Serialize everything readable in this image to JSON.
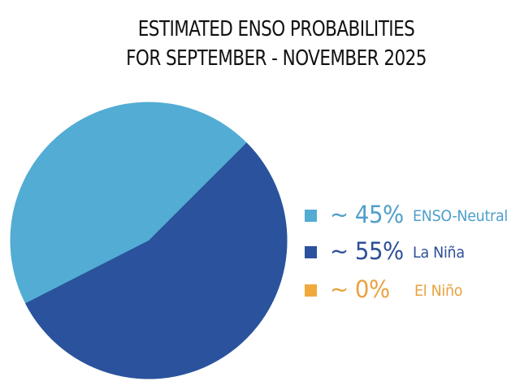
{
  "title": {
    "line1": "ESTIMATED ENSO PROBABILITIES",
    "line2": "FOR SEPTEMBER - NOVEMBER 2025"
  },
  "legend": [
    {
      "percent": "~ 45%",
      "label": "ENSO-Neutral",
      "color": "#52acd3",
      "text_color": "#4f9fca"
    },
    {
      "percent": "~ 55%",
      "label": "La Niña",
      "color": "#2b529c",
      "text_color": "#2d4f97"
    },
    {
      "percent": "~ 0%",
      "label": "El Niño",
      "color": "#f0aa3c",
      "text_color": "#e8a23e"
    }
  ],
  "chart_data": {
    "type": "pie",
    "title": "ESTIMATED ENSO PROBABILITIES FOR SEPTEMBER - NOVEMBER 2025",
    "categories": [
      "ENSO-Neutral",
      "La Niña",
      "El Niño"
    ],
    "values": [
      45,
      55,
      0
    ],
    "value_labels": [
      "~ 45%",
      "~ 55%",
      "~ 0%"
    ],
    "colors": [
      "#52acd3",
      "#2b529c",
      "#f0aa3c"
    ],
    "legend_position": "right",
    "xlabel": "",
    "ylabel": ""
  }
}
